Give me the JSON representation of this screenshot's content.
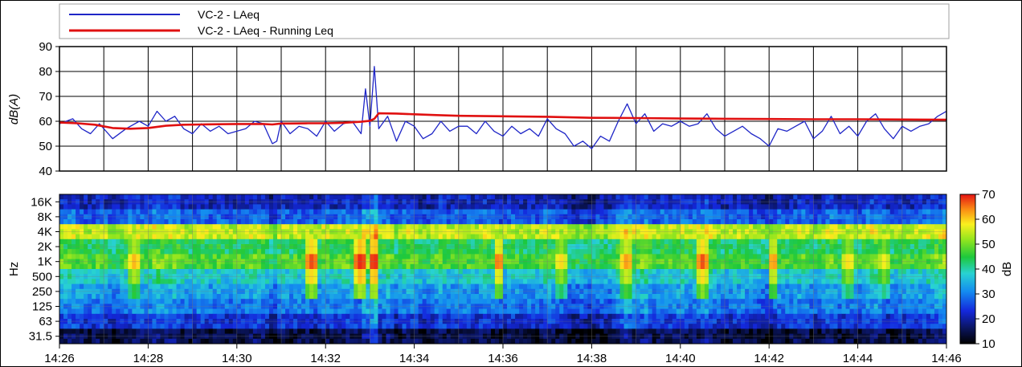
{
  "chart_data": [
    {
      "type": "line",
      "ylabel": "dB(A)",
      "ylim": [
        40,
        90
      ],
      "yticks": [
        "40",
        "50",
        "60",
        "70",
        "80",
        "90"
      ],
      "grid": true,
      "legend_position": "top-left",
      "series": [
        {
          "name": "VC-2 - LAeq",
          "color": "#1f26c7",
          "x": [
            0,
            0.3,
            0.5,
            0.7,
            0.9,
            1.2,
            1.5,
            1.8,
            2.0,
            2.2,
            2.4,
            2.6,
            2.8,
            3.0,
            3.2,
            3.4,
            3.6,
            3.8,
            4.0,
            4.2,
            4.4,
            4.6,
            4.7,
            4.8,
            4.9,
            5.0,
            5.2,
            5.4,
            5.6,
            5.8,
            6.0,
            6.2,
            6.4,
            6.6,
            6.8,
            6.9,
            7.0,
            7.1,
            7.2,
            7.4,
            7.6,
            7.8,
            8.0,
            8.2,
            8.4,
            8.6,
            8.8,
            9.0,
            9.2,
            9.4,
            9.6,
            9.8,
            10.0,
            10.2,
            10.4,
            10.6,
            10.8,
            11.0,
            11.2,
            11.4,
            11.6,
            11.8,
            12.0,
            12.2,
            12.4,
            12.6,
            12.8,
            13.0,
            13.2,
            13.4,
            13.6,
            13.8,
            14.0,
            14.2,
            14.4,
            14.6,
            14.8,
            15.0,
            15.2,
            15.4,
            15.6,
            15.8,
            16.0,
            16.2,
            16.4,
            16.6,
            16.8,
            17.0,
            17.2,
            17.4,
            17.6,
            17.8,
            18.0,
            18.2,
            18.4,
            18.6,
            18.8,
            19.0,
            19.2,
            19.4,
            19.6,
            19.8,
            20.0
          ],
          "values": [
            59,
            61,
            57,
            55,
            59,
            53,
            57,
            60,
            58,
            64,
            60,
            62,
            57,
            55,
            59,
            56,
            58,
            55,
            56,
            57,
            60,
            59,
            55,
            51,
            52,
            60,
            55,
            58,
            57,
            54,
            60,
            56,
            59,
            60,
            55,
            73,
            58,
            82,
            57,
            62,
            52,
            60,
            58,
            53,
            55,
            60,
            56,
            58,
            58,
            55,
            60,
            56,
            54,
            58,
            55,
            57,
            54,
            61,
            57,
            55,
            50,
            52,
            49,
            54,
            52,
            60,
            67,
            59,
            63,
            56,
            59,
            58,
            60,
            58,
            59,
            63,
            57,
            54,
            56,
            58,
            55,
            53,
            50,
            57,
            56,
            58,
            60,
            53,
            56,
            62,
            55,
            58,
            54,
            60,
            63,
            57,
            53,
            58,
            56,
            58,
            59,
            62,
            64
          ]
        },
        {
          "name": "VC-2 - LAeq - Running Leq",
          "color": "#e01010",
          "x": [
            0,
            0.4,
            0.8,
            1.2,
            1.6,
            2.0,
            2.4,
            2.8,
            3.2,
            3.6,
            4.0,
            4.4,
            4.6,
            4.8,
            5.0,
            5.2,
            5.6,
            6.0,
            6.4,
            6.8,
            7.0,
            7.1,
            7.2,
            7.6,
            8.0,
            8.5,
            9,
            10,
            11,
            12,
            13,
            14,
            15,
            16,
            17,
            18,
            19,
            20
          ],
          "values": [
            59.5,
            59.2,
            58.6,
            57.3,
            57.0,
            57.3,
            58.2,
            58.6,
            58.7,
            58.8,
            58.9,
            58.9,
            58.9,
            58.7,
            59.1,
            59.1,
            59.2,
            59.2,
            59.4,
            59.8,
            60.2,
            61.0,
            63.2,
            63.1,
            62.8,
            62.5,
            62.2,
            62.0,
            61.8,
            61.4,
            61.3,
            61.1,
            61.0,
            60.9,
            60.8,
            60.8,
            60.7,
            60.6
          ]
        }
      ]
    },
    {
      "type": "heatmap",
      "ylabel": "Hz",
      "yticks": [
        "16K",
        "8K",
        "4K",
        "2K",
        "1K",
        "500",
        "250",
        "125",
        "63",
        "31.5"
      ],
      "colorbar": {
        "label": "dB",
        "ticks": [
          "10",
          "20",
          "30",
          "40",
          "50",
          "60",
          "70"
        ],
        "range": [
          10,
          70
        ]
      },
      "values_by_band": [
        {
          "band": "16K",
          "level": 22
        },
        {
          "band": "8K",
          "level": 28
        },
        {
          "band": "4K",
          "level": 55
        },
        {
          "band": "2K",
          "level": 44
        },
        {
          "band": "1K",
          "level": 48
        },
        {
          "band": "500",
          "level": 38
        },
        {
          "band": "250",
          "level": 33
        },
        {
          "band": "125",
          "level": 30
        },
        {
          "band": "63",
          "level": 24
        },
        {
          "band": "31.5",
          "level": 15
        }
      ],
      "hot_spots": [
        {
          "x": 1.7,
          "band": "1K",
          "level": 62
        },
        {
          "x": 5.7,
          "band": "1K",
          "level": 68
        },
        {
          "x": 6.8,
          "band": "1K",
          "level": 70
        },
        {
          "x": 7.1,
          "band": "1K",
          "level": 70
        },
        {
          "x": 9.9,
          "band": "1K",
          "level": 66
        },
        {
          "x": 11.3,
          "band": "1K",
          "level": 60
        },
        {
          "x": 12.8,
          "band": "1K",
          "level": 64
        },
        {
          "x": 14.5,
          "band": "1K",
          "level": 67
        },
        {
          "x": 16.1,
          "band": "1K",
          "level": 64
        },
        {
          "x": 17.8,
          "band": "1K",
          "level": 60
        },
        {
          "x": 18.6,
          "band": "1K",
          "level": 58
        }
      ]
    }
  ],
  "x_axis": {
    "ticks": [
      "14:26",
      "14:28",
      "14:30",
      "14:32",
      "14:34",
      "14:36",
      "14:38",
      "14:40",
      "14:42",
      "14:44",
      "14:46"
    ]
  },
  "legend": [
    {
      "label": "VC-2 - LAeq",
      "color": "#1f26c7"
    },
    {
      "label": "VC-2 - LAeq - Running Leq",
      "color": "#e01010"
    }
  ]
}
